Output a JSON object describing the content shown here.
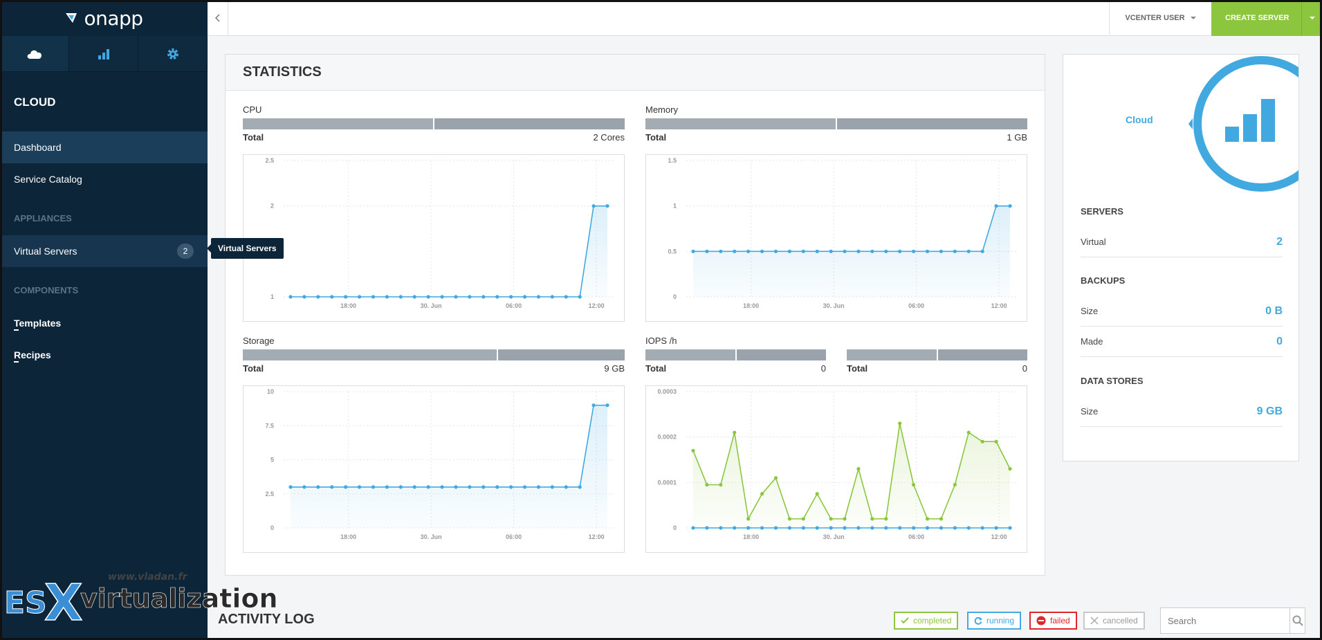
{
  "app": {
    "logo_text": "onapp"
  },
  "sidebar": {
    "tabs": [
      "cloud-icon",
      "bar-chart-icon",
      "gear-icon"
    ],
    "title": "CLOUD",
    "items": [
      {
        "label": "Dashboard"
      },
      {
        "label": "Service Catalog"
      }
    ],
    "appliances_heading": "APPLIANCES",
    "virtual_servers": {
      "label": "Virtual Servers",
      "count": "2"
    },
    "tooltip": "Virtual Servers",
    "components_heading": "COMPONENTS",
    "components": [
      {
        "label": "Templates"
      },
      {
        "label": "Recipes"
      }
    ]
  },
  "topbar": {
    "user": "VCENTER USER",
    "create_button": "CREATE SERVER"
  },
  "statistics": {
    "title": "STATISTICS",
    "cpu": {
      "title": "CPU",
      "total_label": "Total",
      "total_value": "2 Cores"
    },
    "memory": {
      "title": "Memory",
      "total_label": "Total",
      "total_value": "1 GB"
    },
    "storage": {
      "title": "Storage",
      "total_label": "Total",
      "total_value": "9 GB"
    },
    "iops": {
      "title": "IOPS /h",
      "read_label": "Total",
      "read_value": "0",
      "write_label": "Total",
      "write_value": "0"
    }
  },
  "chart_data": [
    {
      "type": "line",
      "title": "CPU",
      "x_ticks": [
        "18:00",
        "30. Jun",
        "06:00",
        "12:00"
      ],
      "y_ticks": [
        "1",
        "2",
        "2.5"
      ],
      "ylim": [
        1,
        2.5
      ],
      "series": [
        {
          "values": [
            1,
            1,
            1,
            1,
            1,
            1,
            1,
            1,
            1,
            1,
            1,
            1,
            1,
            1,
            1,
            1,
            1,
            1,
            1,
            1,
            1,
            1,
            2,
            2
          ],
          "color": "#41a9e0"
        }
      ]
    },
    {
      "type": "line",
      "title": "Memory",
      "x_ticks": [
        "18:00",
        "30. Jun",
        "06:00",
        "12:00"
      ],
      "y_ticks": [
        "0",
        "0.5",
        "1",
        "1.5"
      ],
      "ylim": [
        0,
        1.5
      ],
      "series": [
        {
          "values": [
            0.5,
            0.5,
            0.5,
            0.5,
            0.5,
            0.5,
            0.5,
            0.5,
            0.5,
            0.5,
            0.5,
            0.5,
            0.5,
            0.5,
            0.5,
            0.5,
            0.5,
            0.5,
            0.5,
            0.5,
            0.5,
            0.5,
            1,
            1
          ],
          "color": "#41a9e0"
        }
      ]
    },
    {
      "type": "line",
      "title": "Storage",
      "x_ticks": [
        "18:00",
        "30. Jun",
        "06:00",
        "12:00"
      ],
      "y_ticks": [
        "0",
        "2.5",
        "5",
        "7.5",
        "10"
      ],
      "ylim": [
        0,
        10
      ],
      "series": [
        {
          "values": [
            3,
            3,
            3,
            3,
            3,
            3,
            3,
            3,
            3,
            3,
            3,
            3,
            3,
            3,
            3,
            3,
            3,
            3,
            3,
            3,
            3,
            3,
            9,
            9
          ],
          "color": "#41a9e0"
        }
      ]
    },
    {
      "type": "line",
      "title": "IOPS /h",
      "x_ticks": [
        "18:00",
        "30. Jun",
        "06:00",
        "12:00"
      ],
      "y_ticks": [
        "0",
        "0.0001",
        "0.0002",
        "0.0003"
      ],
      "ylim": [
        0,
        0.0003
      ],
      "series": [
        {
          "values": [
            0.00017,
            9.5e-05,
            9.5e-05,
            0.00021,
            2e-05,
            7.5e-05,
            0.00011,
            2e-05,
            2e-05,
            7.5e-05,
            2e-05,
            2e-05,
            0.00013,
            2e-05,
            2e-05,
            0.00023,
            9.5e-05,
            2e-05,
            2e-05,
            9.5e-05,
            0.00021,
            0.00019,
            0.00019,
            0.00013
          ],
          "color": "#8cc63f"
        },
        {
          "values": [
            0,
            0,
            0,
            0,
            0,
            0,
            0,
            0,
            0,
            0,
            0,
            0,
            0,
            0,
            0,
            0,
            0,
            0,
            0,
            0,
            0,
            0,
            0,
            0
          ],
          "color": "#41a9e0"
        }
      ]
    }
  ],
  "summary": {
    "label": "Cloud",
    "servers": {
      "heading": "SERVERS",
      "virtual_label": "Virtual",
      "virtual_value": "2"
    },
    "backups": {
      "heading": "BACKUPS",
      "size_label": "Size",
      "size_value": "0 B",
      "made_label": "Made",
      "made_value": "0"
    },
    "datastores": {
      "heading": "DATA STORES",
      "size_label": "Size",
      "size_value": "9 GB"
    }
  },
  "activity": {
    "title": "ACTIVITY LOG",
    "filters": [
      {
        "label": "completed",
        "color": "#8cc63f"
      },
      {
        "label": "running",
        "color": "#41a9e0"
      },
      {
        "label": "failed",
        "color": "#e0262b"
      },
      {
        "label": "cancelled",
        "color": "#aaaaaa"
      }
    ],
    "search_placeholder": "Search"
  },
  "watermark": {
    "url": "www.vladan.fr",
    "brand_es": "ES",
    "brand_x": "X",
    "brand_rest": "virtualization"
  }
}
